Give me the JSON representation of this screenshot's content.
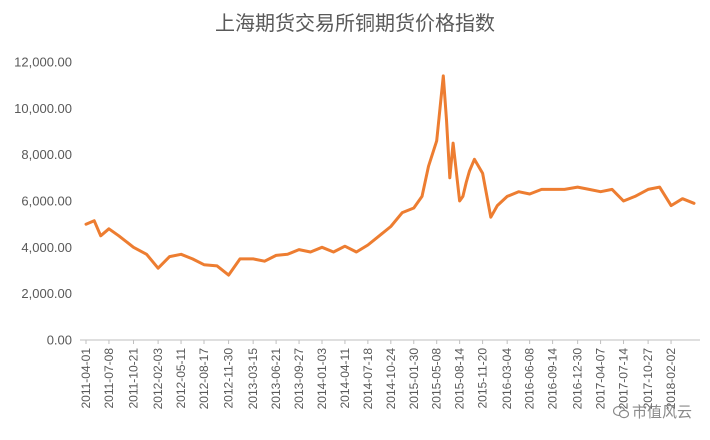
{
  "chart_data": {
    "type": "line",
    "title": "上海期货交易所铜期货价格指数",
    "ylim": [
      0,
      12000
    ],
    "y_ticks": [
      "0.00",
      "2,000.00",
      "4,000.00",
      "6,000.00",
      "8,000.00",
      "10,000.00",
      "12,000.00"
    ],
    "x_tick_labels": [
      "2011-04-01",
      "2011-07-08",
      "2011-10-21",
      "2012-02-03",
      "2012-05-11",
      "2012-08-17",
      "2012-11-30",
      "2013-03-15",
      "2013-06-21",
      "2013-09-27",
      "2014-01-03",
      "2014-04-11",
      "2014-07-18",
      "2014-10-24",
      "2015-01-30",
      "2015-05-08",
      "2015-08-14",
      "2015-11-20",
      "2016-03-04",
      "2016-06-08",
      "2016-09-14",
      "2016-12-30",
      "2017-04-07",
      "2017-07-14",
      "2017-10-27",
      "2018-02-02"
    ],
    "grid": false,
    "legend": "none",
    "series": [
      {
        "color": "#ED7D31",
        "x": [
          "2011-04-01",
          "2011-05-06",
          "2011-06-03",
          "2011-07-08",
          "2011-08-19",
          "2011-10-21",
          "2011-12-16",
          "2012-02-03",
          "2012-03-23",
          "2012-05-11",
          "2012-06-29",
          "2012-08-17",
          "2012-10-12",
          "2012-11-30",
          "2013-01-18",
          "2013-03-15",
          "2013-05-03",
          "2013-06-21",
          "2013-08-09",
          "2013-09-27",
          "2013-11-15",
          "2014-01-03",
          "2014-02-21",
          "2014-04-11",
          "2014-05-30",
          "2014-07-18",
          "2014-09-05",
          "2014-10-24",
          "2014-12-12",
          "2015-01-30",
          "2015-03-06",
          "2015-04-03",
          "2015-05-08",
          "2015-05-22",
          "2015-06-05",
          "2015-06-19",
          "2015-07-03",
          "2015-07-17",
          "2015-08-14",
          "2015-08-28",
          "2015-09-11",
          "2015-09-25",
          "2015-10-16",
          "2015-11-20",
          "2015-12-25",
          "2016-01-22",
          "2016-03-04",
          "2016-04-22",
          "2016-06-08",
          "2016-07-29",
          "2016-09-14",
          "2016-11-04",
          "2016-12-30",
          "2017-02-17",
          "2017-04-07",
          "2017-05-26",
          "2017-07-14",
          "2017-09-01",
          "2017-10-27",
          "2017-12-15",
          "2018-02-02",
          "2018-03-23",
          "2018-05-11"
        ],
        "values": [
          5000,
          5150,
          4500,
          4800,
          4500,
          4000,
          3700,
          3100,
          3600,
          3700,
          3500,
          3250,
          3200,
          2800,
          3500,
          3500,
          3400,
          3650,
          3700,
          3900,
          3800,
          4000,
          3800,
          4050,
          3800,
          4100,
          4500,
          4900,
          5500,
          5700,
          6200,
          7500,
          8600,
          10000,
          11400,
          9500,
          7000,
          8500,
          6000,
          6200,
          6800,
          7300,
          7800,
          7200,
          5300,
          5800,
          6200,
          6400,
          6300,
          6500,
          6500,
          6500,
          6600,
          6500,
          6400,
          6500,
          6000,
          6200,
          6500,
          6600,
          5800,
          6100,
          5900
        ]
      }
    ]
  },
  "watermark": "市值风云"
}
